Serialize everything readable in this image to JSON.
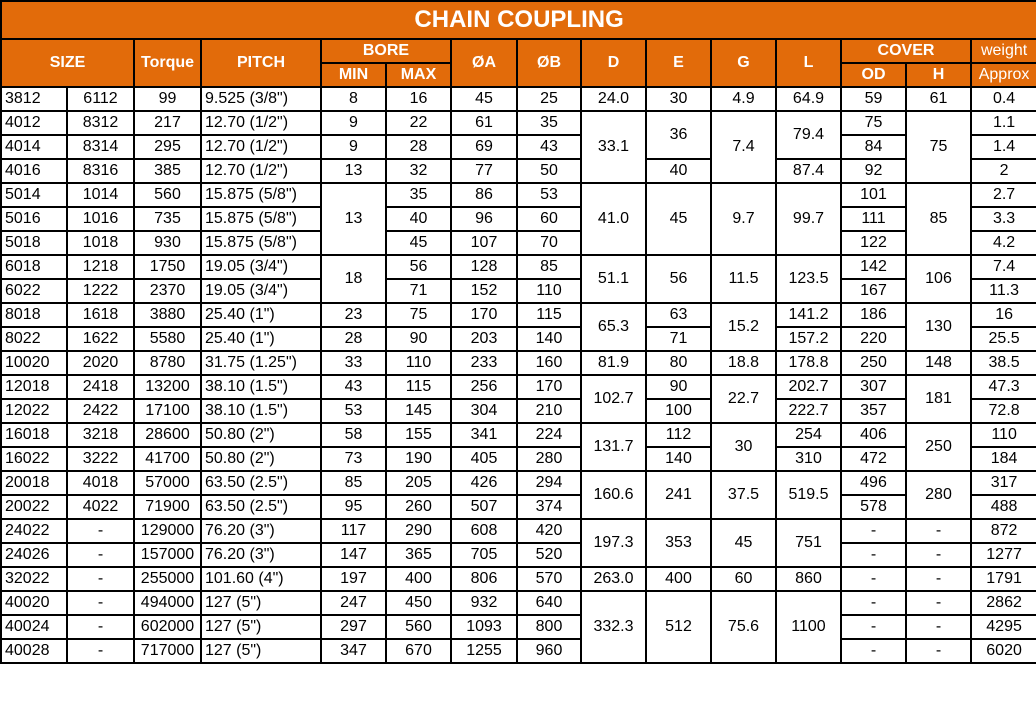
{
  "title": "CHAIN COUPLING",
  "accent_color": "#E26B0A",
  "headers": {
    "size": "SIZE",
    "torque": "Torque",
    "pitch": "PITCH",
    "bore": "BORE",
    "bore_min": "MIN",
    "bore_max": "MAX",
    "a": "ØA",
    "b": "ØB",
    "d": "D",
    "e": "E",
    "g": "G",
    "l": "L",
    "cover": "COVER",
    "cover_od": "OD",
    "cover_h": "H",
    "weight": "weight",
    "weight_sub": "Approx"
  },
  "table": {
    "rows": [
      [
        "3812",
        "6112",
        "99",
        "9.525  (3/8\")",
        "8",
        "16",
        "45",
        "25",
        "24.0",
        "30",
        "4.9",
        "64.9",
        "59",
        "61",
        "0.4"
      ],
      [
        "4012",
        "8312",
        "217",
        "12.70  (1/2\")",
        "9",
        "22",
        "61",
        "35",
        "33.1",
        "36",
        "7.4",
        "79.4",
        "75",
        "75",
        "1.1"
      ],
      [
        "4014",
        "8314",
        "295",
        "12.70  (1/2\")",
        "9",
        "28",
        "69",
        "43",
        null,
        null,
        null,
        null,
        "84",
        null,
        "1.4"
      ],
      [
        "4016",
        "8316",
        "385",
        "12.70  (1/2\")",
        "13",
        "32",
        "77",
        "50",
        null,
        "40",
        null,
        "87.4",
        "92",
        null,
        "2"
      ],
      [
        "5014",
        "1014",
        "560",
        "15.875  (5/8\")",
        "13",
        "35",
        "86",
        "53",
        "41.0",
        "45",
        "9.7",
        "99.7",
        "101",
        "85",
        "2.7"
      ],
      [
        "5016",
        "1016",
        "735",
        "15.875  (5/8\")",
        null,
        "40",
        "96",
        "60",
        null,
        null,
        null,
        null,
        "111",
        null,
        "3.3"
      ],
      [
        "5018",
        "1018",
        "930",
        "15.875  (5/8\")",
        null,
        "45",
        "107",
        "70",
        null,
        null,
        null,
        null,
        "122",
        null,
        "4.2"
      ],
      [
        "6018",
        "1218",
        "1750",
        "19.05  (3/4\")",
        "18",
        "56",
        "128",
        "85",
        "51.1",
        "56",
        "11.5",
        "123.5",
        "142",
        "106",
        "7.4"
      ],
      [
        "6022",
        "1222",
        "2370",
        "19.05  (3/4\")",
        null,
        "71",
        "152",
        "110",
        null,
        null,
        null,
        null,
        "167",
        null,
        "11.3"
      ],
      [
        "8018",
        "1618",
        "3880",
        "25.40  (1\")",
        "23",
        "75",
        "170",
        "115",
        "65.3",
        "63",
        "15.2",
        "141.2",
        "186",
        "130",
        "16"
      ],
      [
        "8022",
        "1622",
        "5580",
        "25.40  (1\")",
        "28",
        "90",
        "203",
        "140",
        null,
        "71",
        null,
        "157.2",
        "220",
        null,
        "25.5"
      ],
      [
        "10020",
        "2020",
        "8780",
        "31.75  (1.25\")",
        "33",
        "110",
        "233",
        "160",
        "81.9",
        "80",
        "18.8",
        "178.8",
        "250",
        "148",
        "38.5"
      ],
      [
        "12018",
        "2418",
        "13200",
        "38.10  (1.5\")",
        "43",
        "115",
        "256",
        "170",
        "102.7",
        "90",
        "22.7",
        "202.7",
        "307",
        "181",
        "47.3"
      ],
      [
        "12022",
        "2422",
        "17100",
        "38.10  (1.5\")",
        "53",
        "145",
        "304",
        "210",
        null,
        "100",
        null,
        "222.7",
        "357",
        null,
        "72.8"
      ],
      [
        "16018",
        "3218",
        "28600",
        "50.80  (2\")",
        "58",
        "155",
        "341",
        "224",
        "131.7",
        "112",
        "30",
        "254",
        "406",
        "250",
        "110"
      ],
      [
        "16022",
        "3222",
        "41700",
        "50.80  (2\")",
        "73",
        "190",
        "405",
        "280",
        null,
        "140",
        null,
        "310",
        "472",
        null,
        "184"
      ],
      [
        "20018",
        "4018",
        "57000",
        "63.50  (2.5\")",
        "85",
        "205",
        "426",
        "294",
        "160.6",
        "241",
        "37.5",
        "519.5",
        "496",
        "280",
        "317"
      ],
      [
        "20022",
        "4022",
        "71900",
        "63.50  (2.5\")",
        "95",
        "260",
        "507",
        "374",
        null,
        null,
        null,
        null,
        "578",
        null,
        "488"
      ],
      [
        "24022",
        "-",
        "129000",
        "76.20  (3\")",
        "117",
        "290",
        "608",
        "420",
        "197.3",
        "353",
        "45",
        "751",
        "-",
        "-",
        "872"
      ],
      [
        "24026",
        "-",
        "157000",
        "76.20  (3\")",
        "147",
        "365",
        "705",
        "520",
        null,
        null,
        null,
        null,
        "-",
        "-",
        "1277"
      ],
      [
        "32022",
        "-",
        "255000",
        "101.60  (4\")",
        "197",
        "400",
        "806",
        "570",
        "263.0",
        "400",
        "60",
        "860",
        "-",
        "-",
        "1791"
      ],
      [
        "40020",
        "-",
        "494000",
        "127  (5\")",
        "247",
        "450",
        "932",
        "640",
        "332.3",
        "512",
        "75.6",
        "1100",
        "-",
        "-",
        "2862"
      ],
      [
        "40024",
        "-",
        "602000",
        "127  (5\")",
        "297",
        "560",
        "1093",
        "800",
        null,
        null,
        null,
        null,
        "-",
        "-",
        "4295"
      ],
      [
        "40028",
        "-",
        "717000",
        "127  (5\")",
        "347",
        "670",
        "1255",
        "960",
        null,
        null,
        null,
        null,
        "-",
        "-",
        "6020"
      ]
    ]
  }
}
